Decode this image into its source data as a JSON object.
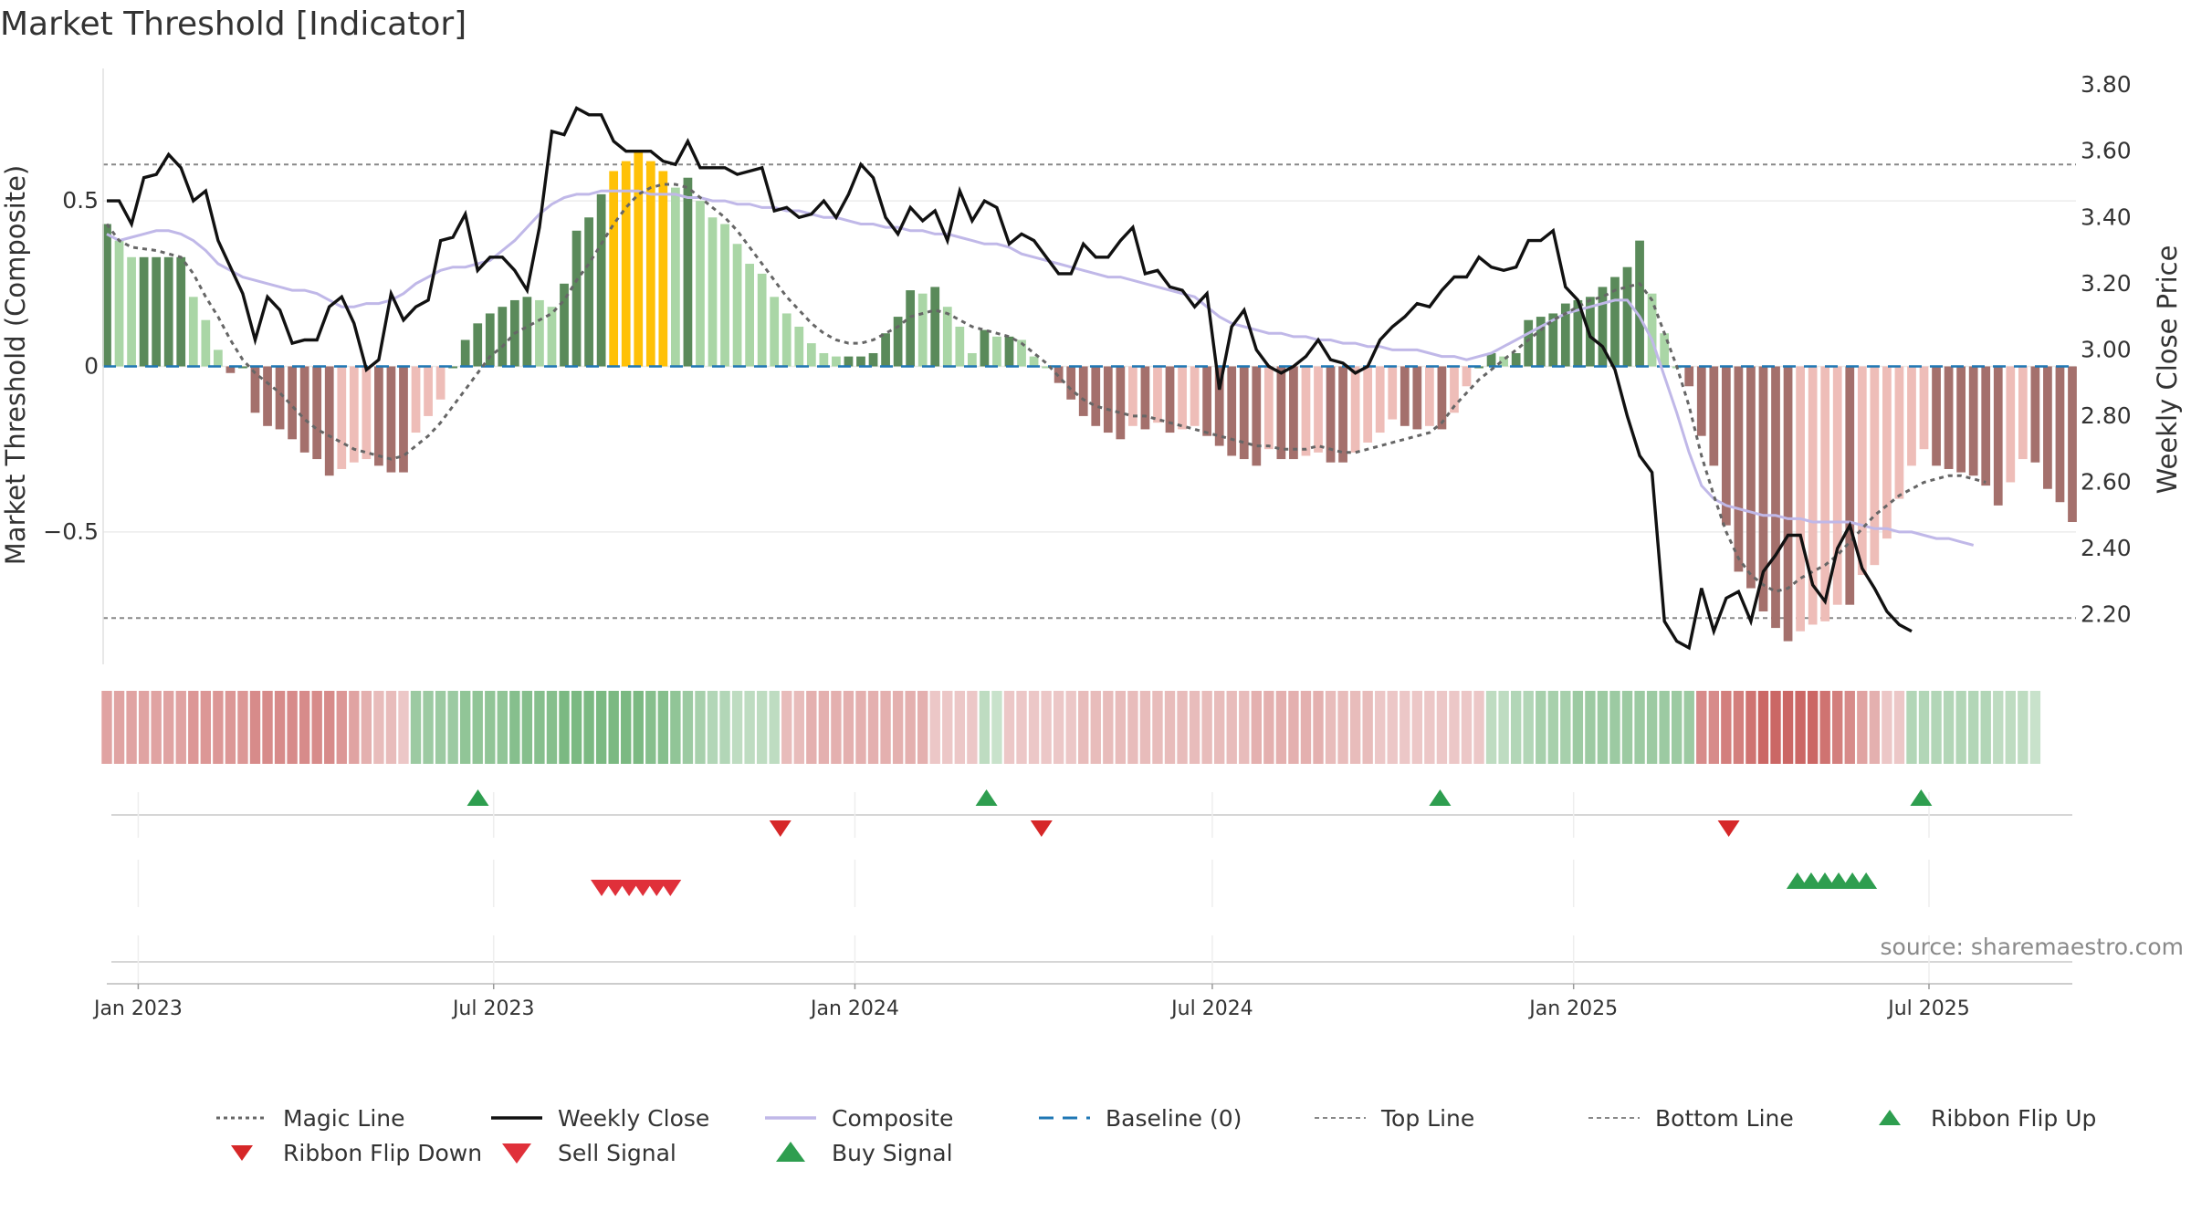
{
  "title": "Market Threshold [Indicator]",
  "source": "source: sharemaestro.com",
  "colors": {
    "magic_line": "#666666",
    "weekly_close": "#111111",
    "composite": "#c0b8e8",
    "baseline": "#1f77b4",
    "threshold": "#888888",
    "flip_up": "#2e9e4f",
    "flip_down": "#d62728",
    "sell": "#e0303a",
    "buy": "#2e9e4f",
    "extreme": "#ffc107"
  },
  "chart_data": {
    "type": "bar",
    "title": "Market Threshold [Indicator]",
    "ylabel": "Market Threshold (Composite)",
    "y2label": "Weekly Close Price",
    "ylim": [
      -0.9,
      0.9
    ],
    "y2lim": [
      2.05,
      3.85
    ],
    "yticks": [
      0.5,
      0,
      -0.5
    ],
    "ytick_labels": [
      "0.5",
      "0",
      "−0.5"
    ],
    "y2ticks": [
      3.8,
      3.6,
      3.4,
      3.2,
      3.0,
      2.8,
      2.6,
      2.4,
      2.2
    ],
    "y2tick_labels": [
      "3.80",
      "3.60",
      "3.40",
      "3.20",
      "3.00",
      "2.80",
      "2.60",
      "2.40",
      "2.20"
    ],
    "x_start": "2022-12-16",
    "x_end": "2025-09-12",
    "xticks": [
      "2023-01-01",
      "2023-07-01",
      "2024-01-01",
      "2024-07-01",
      "2025-01-01",
      "2025-07-01"
    ],
    "xtick_labels": [
      "Jan 2023",
      "Jul 2023",
      "Jan 2024",
      "Jul 2024",
      "Jan 2025",
      "Jul 2025"
    ],
    "top_line": 0.61,
    "bottom_line": -0.76,
    "grid": true,
    "legend_position": "bottom",
    "composite_bars": [
      0.43,
      0.38,
      0.33,
      0.33,
      0.33,
      0.33,
      0.33,
      0.21,
      0.14,
      0.05,
      -0.02,
      0.0,
      -0.14,
      -0.18,
      -0.19,
      -0.22,
      -0.26,
      -0.28,
      -0.33,
      -0.31,
      -0.29,
      -0.28,
      -0.3,
      -0.32,
      -0.32,
      -0.2,
      -0.15,
      -0.1,
      0.0,
      0.08,
      0.13,
      0.16,
      0.18,
      0.2,
      0.21,
      0.2,
      0.18,
      0.25,
      0.41,
      0.45,
      0.52,
      0.59,
      0.62,
      0.65,
      0.62,
      0.59,
      0.54,
      0.57,
      0.5,
      0.45,
      0.43,
      0.37,
      0.31,
      0.28,
      0.21,
      0.16,
      0.12,
      0.07,
      0.04,
      0.03,
      0.03,
      0.03,
      0.04,
      0.1,
      0.15,
      0.23,
      0.22,
      0.24,
      0.18,
      0.12,
      0.04,
      0.11,
      0.09,
      0.09,
      0.08,
      0.03,
      0.0,
      -0.05,
      -0.1,
      -0.15,
      -0.18,
      -0.2,
      -0.22,
      -0.18,
      -0.19,
      -0.17,
      -0.2,
      -0.19,
      -0.18,
      -0.21,
      -0.24,
      -0.27,
      -0.28,
      -0.3,
      -0.25,
      -0.28,
      -0.28,
      -0.27,
      -0.26,
      -0.29,
      -0.29,
      -0.26,
      -0.23,
      -0.2,
      -0.16,
      -0.18,
      -0.19,
      -0.18,
      -0.19,
      -0.14,
      -0.06,
      0.0,
      0.04,
      0.03,
      0.04,
      0.14,
      0.15,
      0.16,
      0.19,
      0.2,
      0.21,
      0.24,
      0.27,
      0.3,
      0.38,
      0.22,
      0.1,
      0.0,
      -0.06,
      -0.21,
      -0.3,
      -0.48,
      -0.62,
      -0.67,
      -0.74,
      -0.79,
      -0.83,
      -0.8,
      -0.78,
      -0.77,
      -0.72,
      -0.72,
      -0.63,
      -0.6,
      -0.52,
      -0.4,
      -0.3,
      -0.25,
      -0.3,
      -0.31,
      -0.32,
      -0.33,
      -0.36,
      -0.42,
      -0.35,
      -0.28,
      -0.29,
      -0.37,
      -0.41,
      -0.47
    ],
    "series": [
      {
        "name": "Magic Line",
        "values": [
          0.43,
          0.38,
          0.36,
          0.355,
          0.35,
          0.34,
          0.33,
          0.28,
          0.21,
          0.15,
          0.08,
          0.02,
          -0.02,
          -0.05,
          -0.08,
          -0.12,
          -0.16,
          -0.19,
          -0.21,
          -0.23,
          -0.25,
          -0.26,
          -0.27,
          -0.28,
          -0.27,
          -0.24,
          -0.21,
          -0.17,
          -0.12,
          -0.07,
          -0.02,
          0.03,
          0.06,
          0.1,
          0.12,
          0.14,
          0.16,
          0.2,
          0.26,
          0.31,
          0.37,
          0.43,
          0.48,
          0.52,
          0.54,
          0.55,
          0.55,
          0.54,
          0.51,
          0.48,
          0.45,
          0.41,
          0.36,
          0.31,
          0.26,
          0.21,
          0.17,
          0.13,
          0.1,
          0.08,
          0.07,
          0.07,
          0.08,
          0.1,
          0.12,
          0.15,
          0.16,
          0.17,
          0.16,
          0.14,
          0.12,
          0.11,
          0.1,
          0.09,
          0.07,
          0.04,
          0.01,
          -0.03,
          -0.07,
          -0.1,
          -0.12,
          -0.13,
          -0.14,
          -0.15,
          -0.15,
          -0.16,
          -0.17,
          -0.18,
          -0.19,
          -0.2,
          -0.21,
          -0.22,
          -0.23,
          -0.24,
          -0.24,
          -0.25,
          -0.25,
          -0.25,
          -0.24,
          -0.25,
          -0.26,
          -0.26,
          -0.25,
          -0.24,
          -0.23,
          -0.22,
          -0.21,
          -0.2,
          -0.17,
          -0.12,
          -0.08,
          -0.04,
          -0.01,
          0.02,
          0.05,
          0.08,
          0.11,
          0.14,
          0.16,
          0.18,
          0.2,
          0.21,
          0.23,
          0.24,
          0.25,
          0.2,
          0.1,
          0.0,
          -0.12,
          -0.27,
          -0.39,
          -0.5,
          -0.58,
          -0.63,
          -0.66,
          -0.68,
          -0.67,
          -0.64,
          -0.62,
          -0.6,
          -0.57,
          -0.53,
          -0.49,
          -0.45,
          -0.42,
          -0.39,
          -0.37,
          -0.35,
          -0.34,
          -0.33,
          -0.33,
          -0.34,
          -0.35
        ]
      },
      {
        "name": "Weekly Close",
        "values": [
          3.45,
          3.45,
          3.38,
          3.52,
          3.53,
          3.59,
          3.55,
          3.45,
          3.48,
          3.33,
          3.25,
          3.17,
          3.03,
          3.16,
          3.12,
          3.02,
          3.03,
          3.03,
          3.13,
          3.16,
          3.08,
          2.94,
          2.97,
          3.17,
          3.09,
          3.13,
          3.15,
          3.33,
          3.34,
          3.41,
          3.24,
          3.28,
          3.28,
          3.24,
          3.18,
          3.37,
          3.66,
          3.65,
          3.73,
          3.71,
          3.71,
          3.63,
          3.6,
          3.6,
          3.6,
          3.57,
          3.56,
          3.63,
          3.55,
          3.55,
          3.55,
          3.53,
          3.54,
          3.55,
          3.42,
          3.43,
          3.4,
          3.41,
          3.45,
          3.4,
          3.47,
          3.56,
          3.52,
          3.4,
          3.35,
          3.43,
          3.39,
          3.42,
          3.33,
          3.48,
          3.39,
          3.45,
          3.43,
          3.32,
          3.35,
          3.33,
          3.28,
          3.23,
          3.23,
          3.32,
          3.28,
          3.28,
          3.33,
          3.37,
          3.23,
          3.24,
          3.19,
          3.18,
          3.13,
          3.17,
          2.88,
          3.07,
          3.12,
          3.0,
          2.95,
          2.93,
          2.95,
          2.98,
          3.03,
          2.97,
          2.96,
          2.93,
          2.95,
          3.03,
          3.07,
          3.1,
          3.14,
          3.13,
          3.18,
          3.22,
          3.22,
          3.28,
          3.25,
          3.24,
          3.25,
          3.33,
          3.33,
          3.36,
          3.19,
          3.15,
          3.04,
          3.01,
          2.94,
          2.8,
          2.68,
          2.63,
          2.18,
          2.12,
          2.1,
          2.28,
          2.15,
          2.25,
          2.27,
          2.18,
          2.33,
          2.38,
          2.44,
          2.44,
          2.29,
          2.24,
          2.4,
          2.47,
          2.34,
          2.28,
          2.21,
          2.17,
          2.15
        ]
      },
      {
        "name": "Composite",
        "values": [
          0.4,
          0.38,
          0.39,
          0.4,
          0.41,
          0.41,
          0.4,
          0.38,
          0.35,
          0.31,
          0.29,
          0.27,
          0.26,
          0.25,
          0.24,
          0.23,
          0.23,
          0.22,
          0.2,
          0.18,
          0.18,
          0.19,
          0.19,
          0.2,
          0.22,
          0.25,
          0.27,
          0.29,
          0.3,
          0.3,
          0.31,
          0.32,
          0.35,
          0.38,
          0.42,
          0.46,
          0.49,
          0.51,
          0.52,
          0.52,
          0.53,
          0.53,
          0.53,
          0.53,
          0.52,
          0.52,
          0.52,
          0.51,
          0.51,
          0.5,
          0.5,
          0.49,
          0.49,
          0.48,
          0.48,
          0.47,
          0.47,
          0.46,
          0.45,
          0.45,
          0.44,
          0.43,
          0.43,
          0.42,
          0.42,
          0.41,
          0.41,
          0.4,
          0.4,
          0.39,
          0.38,
          0.37,
          0.37,
          0.36,
          0.34,
          0.33,
          0.32,
          0.31,
          0.3,
          0.29,
          0.28,
          0.27,
          0.27,
          0.26,
          0.25,
          0.24,
          0.23,
          0.22,
          0.21,
          0.18,
          0.15,
          0.13,
          0.12,
          0.11,
          0.1,
          0.1,
          0.09,
          0.09,
          0.08,
          0.08,
          0.07,
          0.07,
          0.06,
          0.06,
          0.05,
          0.05,
          0.05,
          0.04,
          0.03,
          0.03,
          0.02,
          0.03,
          0.04,
          0.06,
          0.08,
          0.1,
          0.12,
          0.14,
          0.16,
          0.17,
          0.18,
          0.19,
          0.2,
          0.2,
          0.15,
          0.08,
          -0.03,
          -0.14,
          -0.26,
          -0.36,
          -0.4,
          -0.42,
          -0.43,
          -0.44,
          -0.45,
          -0.45,
          -0.46,
          -0.46,
          -0.47,
          -0.47,
          -0.47,
          -0.47,
          -0.48,
          -0.49,
          -0.49,
          -0.5,
          -0.5,
          -0.51,
          -0.52,
          -0.52,
          -0.53,
          -0.54
        ]
      }
    ],
    "ribbon": [
      -0.5,
      -0.5,
      -0.5,
      -0.5,
      -0.5,
      -0.5,
      -0.5,
      -0.6,
      -0.6,
      -0.6,
      -0.6,
      -0.6,
      -0.7,
      -0.7,
      -0.7,
      -0.7,
      -0.7,
      -0.7,
      -0.7,
      -0.6,
      -0.5,
      -0.4,
      -0.3,
      -0.3,
      -0.2,
      0.6,
      0.6,
      0.6,
      0.6,
      0.7,
      0.7,
      0.7,
      0.7,
      0.8,
      0.8,
      0.8,
      0.8,
      0.9,
      0.9,
      0.9,
      0.9,
      0.9,
      0.9,
      0.9,
      0.8,
      0.8,
      0.7,
      0.6,
      0.5,
      0.4,
      0.4,
      0.3,
      0.3,
      0.3,
      0.3,
      -0.3,
      -0.3,
      -0.4,
      -0.4,
      -0.4,
      -0.4,
      -0.4,
      -0.4,
      -0.4,
      -0.4,
      -0.4,
      -0.4,
      -0.2,
      -0.2,
      -0.2,
      -0.2,
      0.3,
      0.2,
      -0.2,
      -0.2,
      -0.2,
      -0.2,
      -0.2,
      -0.2,
      -0.3,
      -0.3,
      -0.3,
      -0.3,
      -0.3,
      -0.3,
      -0.3,
      -0.3,
      -0.3,
      -0.3,
      -0.3,
      -0.3,
      -0.3,
      -0.3,
      -0.4,
      -0.4,
      -0.4,
      -0.4,
      -0.4,
      -0.4,
      -0.3,
      -0.3,
      -0.3,
      -0.3,
      -0.2,
      -0.2,
      -0.2,
      -0.2,
      -0.2,
      -0.2,
      -0.2,
      -0.2,
      -0.2,
      0.3,
      0.3,
      0.4,
      0.4,
      0.5,
      0.5,
      0.5,
      0.6,
      0.6,
      0.6,
      0.6,
      0.6,
      0.6,
      0.6,
      0.6,
      0.6,
      0.6,
      -0.7,
      -0.7,
      -0.8,
      -0.8,
      -0.9,
      -1.0,
      -1.0,
      -1.0,
      -1.0,
      -1.0,
      -0.9,
      -0.8,
      -0.7,
      -0.5,
      -0.4,
      -0.2,
      -0.2,
      0.4,
      0.4,
      0.4,
      0.4,
      0.4,
      0.4,
      0.4,
      0.3,
      0.3,
      0.3,
      0.2
    ],
    "events": {
      "Ribbon Flip Up": [
        "2023-06-23",
        "2024-03-08",
        "2024-10-25",
        "2025-06-27"
      ],
      "Ribbon Flip Down": [
        "2023-11-24",
        "2024-04-05",
        "2025-03-21"
      ],
      "Sell Signal": [
        "2023-08-25",
        "2023-09-01",
        "2023-09-08",
        "2023-09-15",
        "2023-09-22",
        "2023-09-29"
      ],
      "Buy Signal": [
        "2025-04-25",
        "2025-05-02",
        "2025-05-09",
        "2025-05-16",
        "2025-05-23",
        "2025-05-30"
      ]
    },
    "legend": [
      "Magic Line",
      "Weekly Close",
      "Composite",
      "Baseline (0)",
      "Top Line",
      "Bottom Line",
      "Ribbon Flip Up",
      "Ribbon Flip Down",
      "Sell Signal",
      "Buy Signal"
    ]
  }
}
